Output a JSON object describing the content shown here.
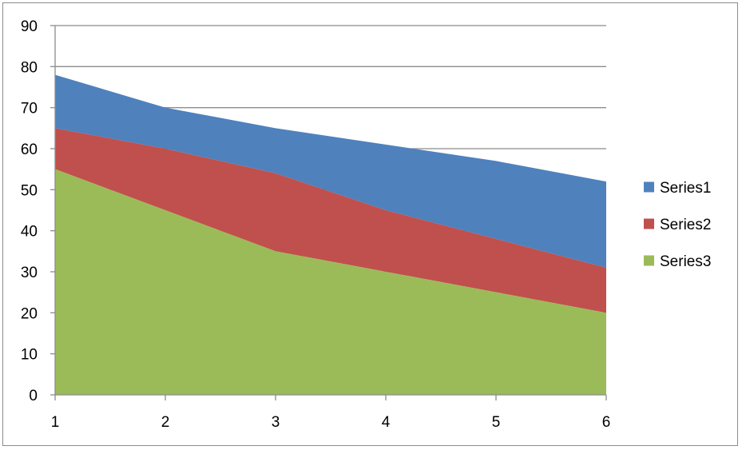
{
  "chart_data": {
    "type": "area",
    "stacked": true,
    "x": [
      1,
      2,
      3,
      4,
      5,
      6
    ],
    "ylim": [
      0,
      90
    ],
    "yticks": [
      0,
      10,
      20,
      30,
      40,
      50,
      60,
      70,
      80,
      90
    ],
    "grid": true,
    "legend_position": "right",
    "series": [
      {
        "name": "Series1",
        "color": "#4f81bd",
        "values": [
          13,
          10,
          11,
          16,
          19,
          21
        ]
      },
      {
        "name": "Series2",
        "color": "#c0504d",
        "values": [
          10,
          15,
          19,
          15,
          13,
          11
        ]
      },
      {
        "name": "Series3",
        "color": "#9bbb59",
        "values": [
          55,
          45,
          35,
          30,
          25,
          20
        ]
      }
    ]
  }
}
